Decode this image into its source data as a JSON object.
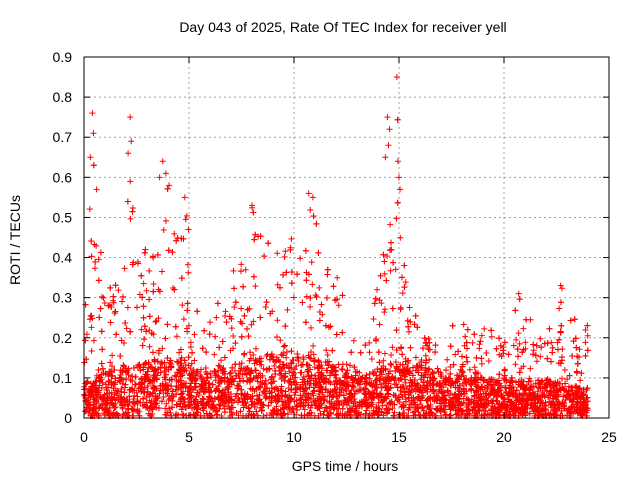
{
  "chart_data": {
    "type": "scatter",
    "title": "Day 043 of 2025, Rate Of TEC Index for receiver yell",
    "xlabel": "GPS time / hours",
    "ylabel": "ROTI / TECUs",
    "xlim": [
      0,
      25
    ],
    "ylim": [
      0,
      0.9
    ],
    "x_ticks": [
      "0",
      "5",
      "10",
      "15",
      "20",
      "25"
    ],
    "y_ticks": [
      "0",
      "0.1",
      "0.2",
      "0.3",
      "0.4",
      "0.5",
      "0.6",
      "0.7",
      "0.8",
      "0.9"
    ],
    "grid": true,
    "marker": "+",
    "color": "#ff0000",
    "x_values": [
      0,
      24
    ],
    "envelope": [
      [
        0.0,
        0.22
      ],
      [
        0.3,
        0.55
      ],
      [
        0.5,
        0.76
      ],
      [
        0.8,
        0.45
      ],
      [
        1.2,
        0.38
      ],
      [
        1.6,
        0.33
      ],
      [
        2.0,
        0.4
      ],
      [
        2.2,
        0.75
      ],
      [
        2.4,
        0.45
      ],
      [
        2.8,
        0.42
      ],
      [
        3.2,
        0.44
      ],
      [
        3.5,
        0.55
      ],
      [
        3.8,
        0.63
      ],
      [
        4.2,
        0.58
      ],
      [
        4.5,
        0.45
      ],
      [
        4.9,
        0.55
      ],
      [
        5.2,
        0.3
      ],
      [
        5.6,
        0.28
      ],
      [
        6.0,
        0.25
      ],
      [
        6.5,
        0.3
      ],
      [
        7.0,
        0.34
      ],
      [
        7.5,
        0.5
      ],
      [
        8.0,
        0.53
      ],
      [
        8.5,
        0.45
      ],
      [
        9.0,
        0.43
      ],
      [
        9.5,
        0.45
      ],
      [
        10.0,
        0.5
      ],
      [
        10.5,
        0.45
      ],
      [
        10.8,
        0.56
      ],
      [
        11.2,
        0.45
      ],
      [
        11.6,
        0.38
      ],
      [
        12.0,
        0.36
      ],
      [
        12.5,
        0.3
      ],
      [
        13.0,
        0.15
      ],
      [
        13.5,
        0.2
      ],
      [
        14.0,
        0.38
      ],
      [
        14.3,
        0.53
      ],
      [
        14.5,
        0.75
      ],
      [
        14.8,
        0.64
      ],
      [
        14.95,
        0.85
      ],
      [
        15.2,
        0.45
      ],
      [
        15.6,
        0.31
      ],
      [
        16.0,
        0.25
      ],
      [
        16.5,
        0.2
      ],
      [
        17.0,
        0.25
      ],
      [
        17.5,
        0.23
      ],
      [
        18.0,
        0.23
      ],
      [
        18.5,
        0.25
      ],
      [
        19.0,
        0.24
      ],
      [
        19.5,
        0.22
      ],
      [
        20.0,
        0.18
      ],
      [
        20.5,
        0.28
      ],
      [
        20.8,
        0.3
      ],
      [
        21.2,
        0.25
      ],
      [
        21.6,
        0.24
      ],
      [
        22.0,
        0.22
      ],
      [
        22.5,
        0.28
      ],
      [
        22.8,
        0.33
      ],
      [
        23.2,
        0.26
      ],
      [
        23.6,
        0.24
      ],
      [
        24.0,
        0.23
      ]
    ],
    "baseline": [
      [
        0.0,
        0.05
      ],
      [
        2.0,
        0.07
      ],
      [
        4.0,
        0.08
      ],
      [
        6.0,
        0.06
      ],
      [
        8.0,
        0.08
      ],
      [
        10.0,
        0.09
      ],
      [
        12.0,
        0.07
      ],
      [
        13.0,
        0.05
      ],
      [
        15.0,
        0.08
      ],
      [
        17.0,
        0.06
      ],
      [
        20.0,
        0.05
      ],
      [
        22.0,
        0.05
      ],
      [
        24.0,
        0.04
      ]
    ],
    "spikes": [
      [
        0.3,
        0.65
      ],
      [
        0.4,
        0.76
      ],
      [
        0.45,
        0.71
      ],
      [
        0.6,
        0.57
      ],
      [
        2.1,
        0.66
      ],
      [
        2.2,
        0.75
      ],
      [
        2.25,
        0.69
      ],
      [
        2.2,
        0.59
      ],
      [
        3.6,
        0.6
      ],
      [
        3.75,
        0.64
      ],
      [
        3.9,
        0.61
      ],
      [
        4.05,
        0.58
      ],
      [
        4.8,
        0.55
      ],
      [
        8.0,
        0.53
      ],
      [
        10.7,
        0.56
      ],
      [
        10.9,
        0.55
      ],
      [
        14.35,
        0.65
      ],
      [
        14.45,
        0.75
      ],
      [
        14.55,
        0.72
      ],
      [
        14.5,
        0.68
      ],
      [
        14.9,
        0.85
      ],
      [
        14.95,
        0.64
      ],
      [
        15.0,
        0.6
      ],
      [
        15.05,
        0.57
      ],
      [
        22.7,
        0.33
      ],
      [
        20.7,
        0.31
      ]
    ]
  }
}
